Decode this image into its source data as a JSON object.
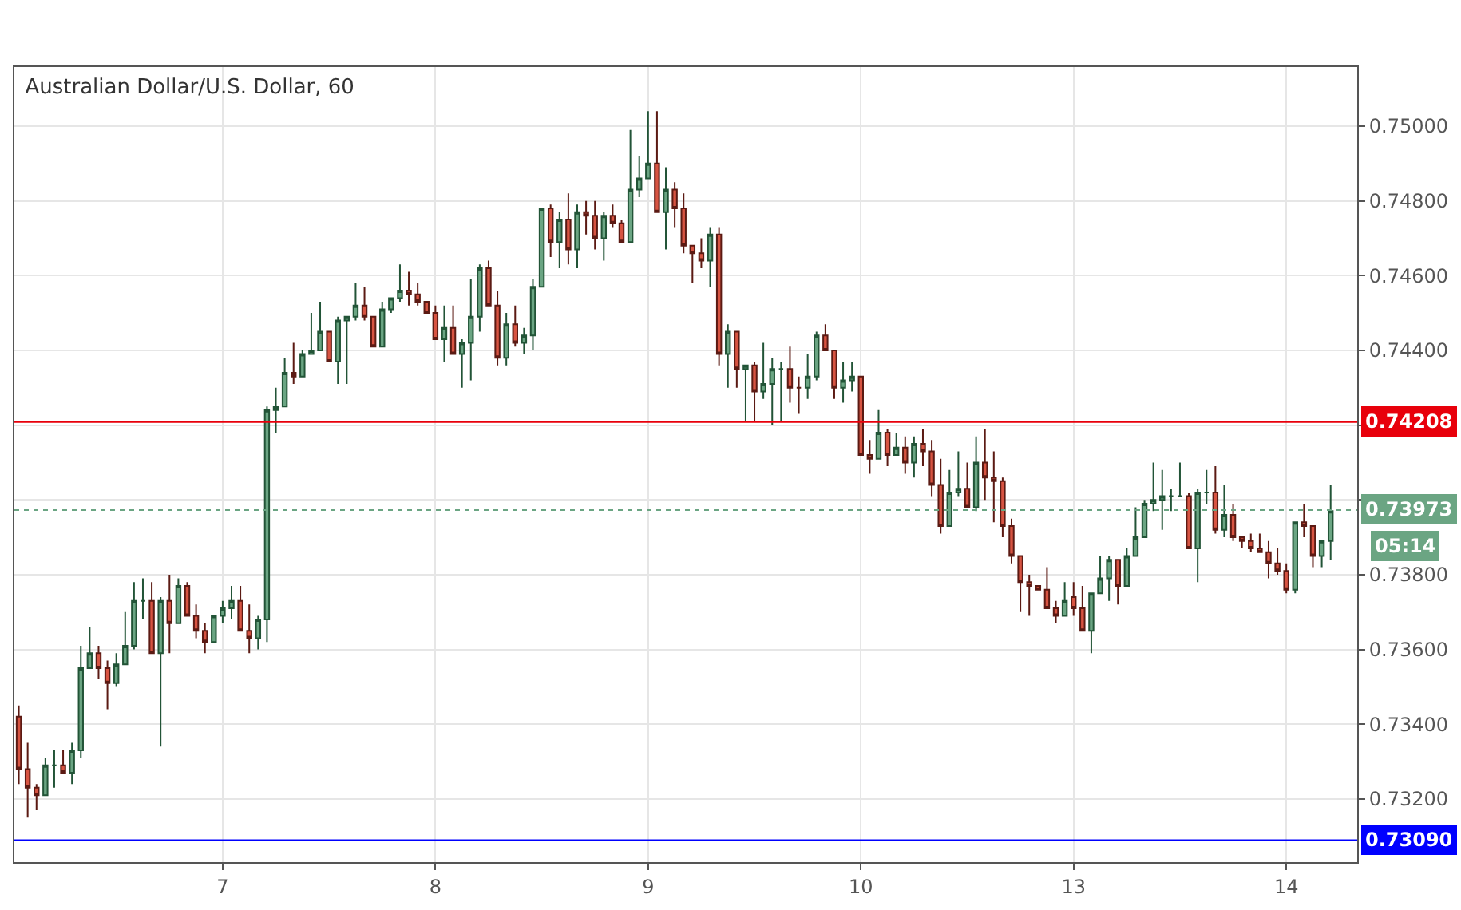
{
  "chart_data": {
    "type": "candlestick",
    "title": "Australian Dollar/U.S. Dollar, 60",
    "categories": [
      null,
      null,
      null,
      null,
      null,
      null,
      null,
      null,
      null,
      null,
      null,
      null,
      null,
      null,
      null,
      null,
      null,
      null,
      null,
      null,
      null,
      null,
      null,
      "7",
      null,
      null,
      null,
      null,
      null,
      null,
      null,
      null,
      null,
      null,
      null,
      null,
      null,
      null,
      null,
      null,
      null,
      null,
      null,
      null,
      null,
      null,
      null,
      "8",
      null,
      null,
      null,
      null,
      null,
      null,
      null,
      null,
      null,
      null,
      null,
      null,
      null,
      null,
      null,
      null,
      null,
      null,
      null,
      null,
      null,
      null,
      null,
      "9",
      null,
      null,
      null,
      null,
      null,
      null,
      null,
      null,
      null,
      null,
      null,
      null,
      null,
      null,
      null,
      null,
      null,
      null,
      null,
      null,
      null,
      null,
      null,
      "10",
      null,
      null,
      null,
      null,
      null,
      null,
      null,
      null,
      null,
      null,
      null,
      null,
      null,
      null,
      null,
      null,
      null,
      null,
      null,
      null,
      null,
      null,
      null,
      "13",
      null,
      null,
      null,
      null,
      null,
      null,
      null,
      null,
      null,
      null,
      null,
      null,
      null,
      null,
      null,
      null,
      null,
      null,
      null,
      null,
      null,
      null,
      null,
      "14",
      null,
      null,
      null,
      null,
      null
    ],
    "ohlc": [
      [
        0.7342,
        0.7345,
        0.7324,
        0.7328
      ],
      [
        0.7328,
        0.7335,
        0.7315,
        0.7323
      ],
      [
        0.7323,
        0.7324,
        0.7317,
        0.7321
      ],
      [
        0.7321,
        0.7331,
        0.7321,
        0.7329
      ],
      [
        0.7329,
        0.7333,
        0.7323,
        0.7329
      ],
      [
        0.7329,
        0.7333,
        0.7327,
        0.7327
      ],
      [
        0.7327,
        0.7335,
        0.7324,
        0.7333
      ],
      [
        0.7333,
        0.7361,
        0.7331,
        0.7355
      ],
      [
        0.7355,
        0.7366,
        0.7355,
        0.7359
      ],
      [
        0.7359,
        0.7361,
        0.7352,
        0.7355
      ],
      [
        0.7355,
        0.7357,
        0.7344,
        0.7351
      ],
      [
        0.7351,
        0.7359,
        0.735,
        0.7356
      ],
      [
        0.7356,
        0.737,
        0.7356,
        0.7361
      ],
      [
        0.7361,
        0.7378,
        0.736,
        0.7373
      ],
      [
        0.7373,
        0.7379,
        0.7368,
        0.7373
      ],
      [
        0.7373,
        0.7378,
        0.7359,
        0.7359
      ],
      [
        0.7359,
        0.7374,
        0.7334,
        0.7373
      ],
      [
        0.7373,
        0.738,
        0.7359,
        0.7367
      ],
      [
        0.7367,
        0.7379,
        0.7367,
        0.7377
      ],
      [
        0.7377,
        0.7378,
        0.7369,
        0.7369
      ],
      [
        0.7369,
        0.7372,
        0.7363,
        0.7365
      ],
      [
        0.7365,
        0.7367,
        0.7359,
        0.7362
      ],
      [
        0.7362,
        0.7369,
        0.7362,
        0.7369
      ],
      [
        0.7369,
        0.7373,
        0.7367,
        0.7371
      ],
      [
        0.7371,
        0.7377,
        0.7368,
        0.7373
      ],
      [
        0.7373,
        0.7377,
        0.7365,
        0.7365
      ],
      [
        0.7365,
        0.7372,
        0.7359,
        0.7363
      ],
      [
        0.7363,
        0.7369,
        0.736,
        0.7368
      ],
      [
        0.7368,
        0.7425,
        0.7362,
        0.7424
      ],
      [
        0.7424,
        0.743,
        0.7418,
        0.7425
      ],
      [
        0.7425,
        0.7438,
        0.7425,
        0.7434
      ],
      [
        0.7434,
        0.7442,
        0.7431,
        0.7433
      ],
      [
        0.7433,
        0.744,
        0.7433,
        0.7439
      ],
      [
        0.7439,
        0.745,
        0.7439,
        0.744
      ],
      [
        0.744,
        0.7453,
        0.744,
        0.7445
      ],
      [
        0.7445,
        0.7445,
        0.7437,
        0.7437
      ],
      [
        0.7437,
        0.7449,
        0.7431,
        0.7448
      ],
      [
        0.7448,
        0.7449,
        0.7431,
        0.7449
      ],
      [
        0.7449,
        0.7458,
        0.7448,
        0.7452
      ],
      [
        0.7452,
        0.7457,
        0.7448,
        0.7449
      ],
      [
        0.7449,
        0.7449,
        0.7441,
        0.7441
      ],
      [
        0.7441,
        0.7453,
        0.7441,
        0.7451
      ],
      [
        0.7451,
        0.7454,
        0.745,
        0.7454
      ],
      [
        0.7454,
        0.7463,
        0.7453,
        0.7456
      ],
      [
        0.7456,
        0.7461,
        0.7452,
        0.7455
      ],
      [
        0.7455,
        0.7458,
        0.7452,
        0.7453
      ],
      [
        0.7453,
        0.7453,
        0.745,
        0.745
      ],
      [
        0.745,
        0.7452,
        0.7443,
        0.7443
      ],
      [
        0.7443,
        0.7452,
        0.7437,
        0.7446
      ],
      [
        0.7446,
        0.7452,
        0.7439,
        0.7439
      ],
      [
        0.7439,
        0.7443,
        0.743,
        0.7442
      ],
      [
        0.7442,
        0.7459,
        0.7432,
        0.7449
      ],
      [
        0.7449,
        0.7463,
        0.7445,
        0.7462
      ],
      [
        0.7462,
        0.7464,
        0.7452,
        0.7452
      ],
      [
        0.7452,
        0.7456,
        0.7436,
        0.7438
      ],
      [
        0.7438,
        0.745,
        0.7436,
        0.7447
      ],
      [
        0.7447,
        0.7452,
        0.7441,
        0.7442
      ],
      [
        0.7442,
        0.7446,
        0.7439,
        0.7444
      ],
      [
        0.7444,
        0.7459,
        0.744,
        0.7457
      ],
      [
        0.7457,
        0.7478,
        0.7457,
        0.7478
      ],
      [
        0.7478,
        0.7479,
        0.7465,
        0.7469
      ],
      [
        0.7469,
        0.7477,
        0.7462,
        0.7475
      ],
      [
        0.7475,
        0.7482,
        0.7463,
        0.7467
      ],
      [
        0.7467,
        0.7479,
        0.7462,
        0.7477
      ],
      [
        0.7477,
        0.748,
        0.7471,
        0.7476
      ],
      [
        0.7476,
        0.748,
        0.7467,
        0.747
      ],
      [
        0.747,
        0.7477,
        0.7464,
        0.7476
      ],
      [
        0.7476,
        0.7479,
        0.7473,
        0.7474
      ],
      [
        0.7474,
        0.7475,
        0.7469,
        0.7469
      ],
      [
        0.7469,
        0.7499,
        0.7469,
        0.7483
      ],
      [
        0.7483,
        0.7492,
        0.7481,
        0.7486
      ],
      [
        0.7486,
        0.7504,
        0.7486,
        0.749
      ],
      [
        0.749,
        0.7504,
        0.7477,
        0.7477
      ],
      [
        0.7477,
        0.7489,
        0.7467,
        0.7483
      ],
      [
        0.7483,
        0.7485,
        0.7473,
        0.7478
      ],
      [
        0.7478,
        0.7482,
        0.7466,
        0.7468
      ],
      [
        0.7468,
        0.7468,
        0.7458,
        0.7466
      ],
      [
        0.7466,
        0.747,
        0.7462,
        0.7464
      ],
      [
        0.7464,
        0.7473,
        0.7457,
        0.7471
      ],
      [
        0.7471,
        0.7473,
        0.7436,
        0.7439
      ],
      [
        0.7439,
        0.7447,
        0.743,
        0.7445
      ],
      [
        0.7445,
        0.7445,
        0.743,
        0.7435
      ],
      [
        0.7435,
        0.7436,
        0.7421,
        0.7436
      ],
      [
        0.7436,
        0.7437,
        0.7421,
        0.7429
      ],
      [
        0.7429,
        0.7442,
        0.7427,
        0.7431
      ],
      [
        0.7431,
        0.7438,
        0.742,
        0.7435
      ],
      [
        0.7435,
        0.7437,
        0.7421,
        0.7435
      ],
      [
        0.7435,
        0.7441,
        0.7426,
        0.743
      ],
      [
        0.743,
        0.7433,
        0.7423,
        0.743
      ],
      [
        0.743,
        0.7439,
        0.7427,
        0.7433
      ],
      [
        0.7433,
        0.7445,
        0.7432,
        0.7444
      ],
      [
        0.7444,
        0.7447,
        0.744,
        0.744
      ],
      [
        0.744,
        0.744,
        0.7427,
        0.743
      ],
      [
        0.743,
        0.7437,
        0.7426,
        0.7432
      ],
      [
        0.7432,
        0.7437,
        0.7429,
        0.7433
      ],
      [
        0.7433,
        0.7433,
        0.7412,
        0.7412
      ],
      [
        0.7412,
        0.7416,
        0.7407,
        0.7411
      ],
      [
        0.7411,
        0.7424,
        0.7411,
        0.7418
      ],
      [
        0.7418,
        0.7419,
        0.7409,
        0.7412
      ],
      [
        0.7412,
        0.7418,
        0.7412,
        0.7414
      ],
      [
        0.7414,
        0.7417,
        0.7407,
        0.741
      ],
      [
        0.741,
        0.7417,
        0.7406,
        0.7415
      ],
      [
        0.7415,
        0.7419,
        0.7409,
        0.7413
      ],
      [
        0.7413,
        0.7416,
        0.7401,
        0.7404
      ],
      [
        0.7404,
        0.7411,
        0.7391,
        0.7393
      ],
      [
        0.7393,
        0.7408,
        0.7393,
        0.7402
      ],
      [
        0.7402,
        0.7413,
        0.7401,
        0.7403
      ],
      [
        0.7403,
        0.741,
        0.7398,
        0.7398
      ],
      [
        0.7398,
        0.7417,
        0.7397,
        0.741
      ],
      [
        0.741,
        0.7419,
        0.74,
        0.7406
      ],
      [
        0.7406,
        0.7413,
        0.7394,
        0.7405
      ],
      [
        0.7405,
        0.7406,
        0.739,
        0.7393
      ],
      [
        0.7393,
        0.7395,
        0.7383,
        0.7385
      ],
      [
        0.7385,
        0.7385,
        0.737,
        0.7378
      ],
      [
        0.7378,
        0.738,
        0.7369,
        0.7377
      ],
      [
        0.7377,
        0.7377,
        0.7376,
        0.7376
      ],
      [
        0.7376,
        0.7382,
        0.7371,
        0.7371
      ],
      [
        0.7371,
        0.7373,
        0.7367,
        0.7369
      ],
      [
        0.7369,
        0.7378,
        0.7369,
        0.7373
      ],
      [
        0.7374,
        0.7378,
        0.7369,
        0.7371
      ],
      [
        0.7371,
        0.7377,
        0.7365,
        0.7365
      ],
      [
        0.7365,
        0.7375,
        0.7359,
        0.7375
      ],
      [
        0.7375,
        0.7385,
        0.7375,
        0.7379
      ],
      [
        0.7379,
        0.7385,
        0.7373,
        0.7384
      ],
      [
        0.7384,
        0.7384,
        0.7372,
        0.7377
      ],
      [
        0.7377,
        0.7387,
        0.7377,
        0.7385
      ],
      [
        0.7385,
        0.7398,
        0.7385,
        0.739
      ],
      [
        0.739,
        0.74,
        0.739,
        0.7399
      ],
      [
        0.7399,
        0.741,
        0.7397,
        0.74
      ],
      [
        0.74,
        0.7408,
        0.7392,
        0.7401
      ],
      [
        0.7401,
        0.7403,
        0.7397,
        0.7401
      ],
      [
        0.7401,
        0.741,
        0.7401,
        0.7401
      ],
      [
        0.7401,
        0.7402,
        0.7387,
        0.7387
      ],
      [
        0.7387,
        0.7403,
        0.7378,
        0.7402
      ],
      [
        0.7402,
        0.7408,
        0.7399,
        0.7402
      ],
      [
        0.7402,
        0.7409,
        0.7391,
        0.7392
      ],
      [
        0.7392,
        0.7404,
        0.739,
        0.7396
      ],
      [
        0.7396,
        0.7399,
        0.7389,
        0.739
      ],
      [
        0.739,
        0.739,
        0.7387,
        0.7389
      ],
      [
        0.7389,
        0.7391,
        0.7386,
        0.7387
      ],
      [
        0.7387,
        0.7391,
        0.7386,
        0.7386
      ],
      [
        0.7386,
        0.7389,
        0.7379,
        0.7383
      ],
      [
        0.7383,
        0.7387,
        0.738,
        0.7381
      ],
      [
        0.7381,
        0.7383,
        0.7375,
        0.7376
      ],
      [
        0.7376,
        0.7394,
        0.7375,
        0.7394
      ],
      [
        0.7394,
        0.7399,
        0.739,
        0.7393
      ],
      [
        0.7393,
        0.7393,
        0.7382,
        0.7385
      ],
      [
        0.7385,
        0.7389,
        0.7382,
        0.7389
      ],
      [
        0.7389,
        0.7404,
        0.7384,
        0.7397
      ]
    ],
    "ylim": [
      0.73031,
      0.75158
    ],
    "yticks": [
      {
        "value": 0.732,
        "label": "0.73200"
      },
      {
        "value": 0.734,
        "label": "0.73400"
      },
      {
        "value": 0.736,
        "label": "0.73600"
      },
      {
        "value": 0.738,
        "label": "0.73800"
      },
      {
        "value": 0.74,
        "label": null
      },
      {
        "value": 0.742,
        "label": null
      },
      {
        "value": 0.744,
        "label": "0.74400"
      },
      {
        "value": 0.746,
        "label": "0.74600"
      },
      {
        "value": 0.748,
        "label": "0.74800"
      },
      {
        "value": 0.75,
        "label": "0.75000"
      }
    ],
    "ref_lines": [
      {
        "axis": "y",
        "value": 0.74208,
        "label": "0.74208",
        "color": "#e8000b"
      },
      {
        "axis": "y",
        "value": 0.7309,
        "label": "0.73090",
        "color": "#0000ff"
      },
      {
        "axis": "y",
        "value": 0.73973,
        "label": "0.73973",
        "color": "#6ba583",
        "line_style": "dotted"
      }
    ],
    "annotations": [
      "05:14"
    ],
    "grid": true
  }
}
